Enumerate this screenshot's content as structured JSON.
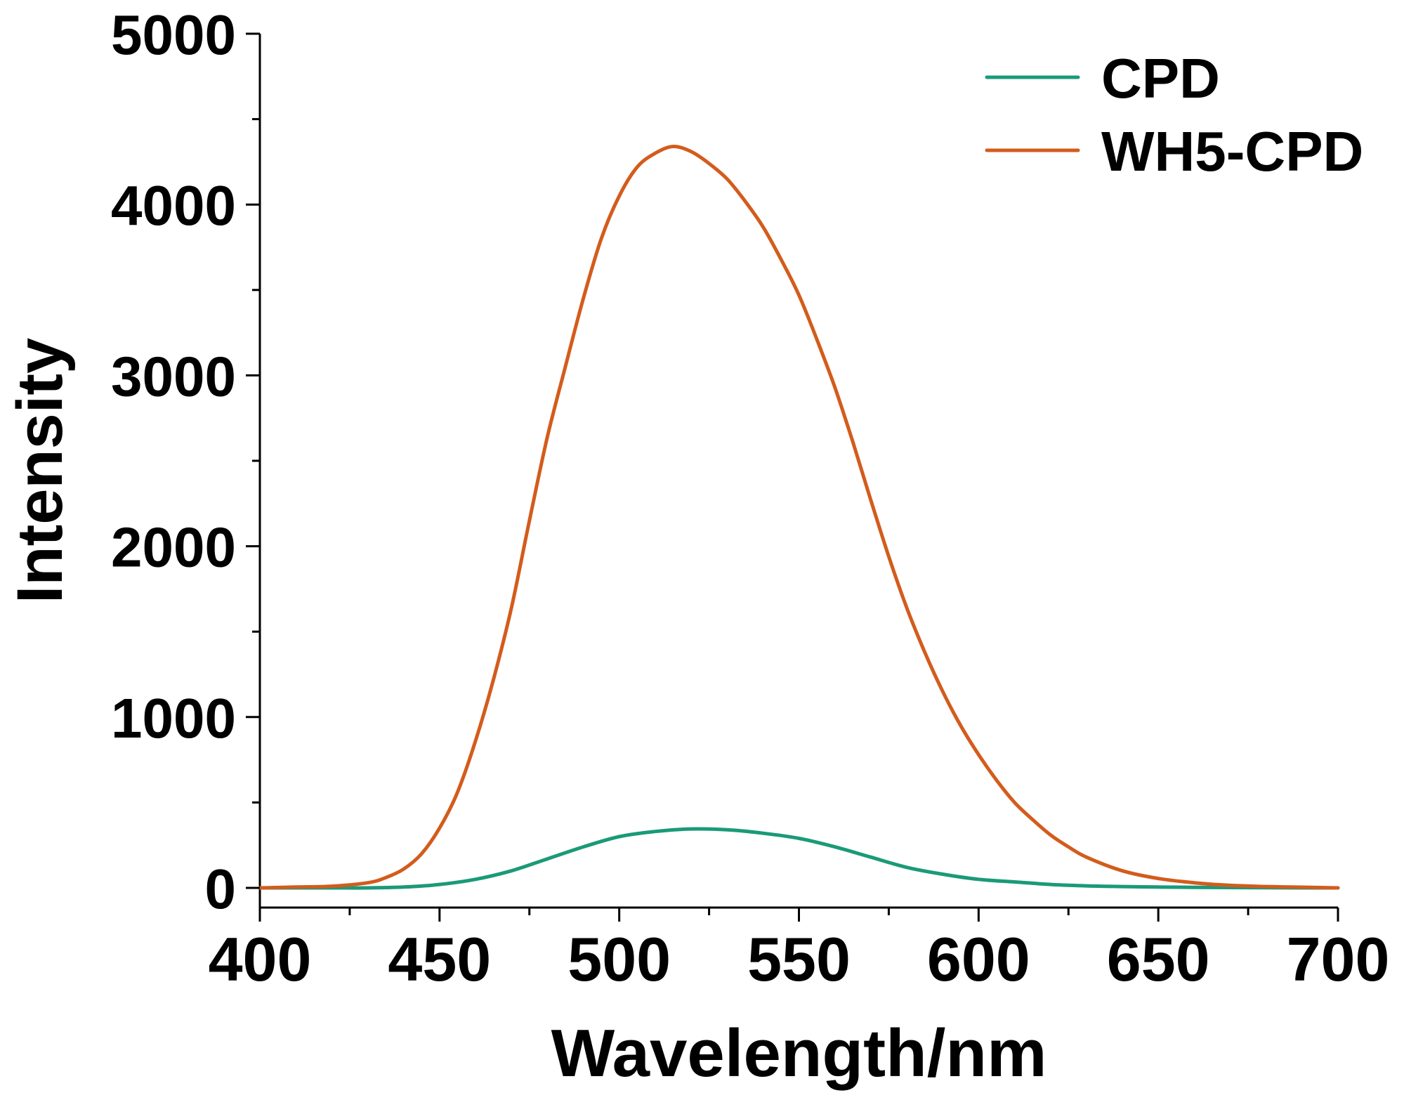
{
  "chart_data": {
    "type": "line",
    "title": "",
    "xlabel": "Wavelength/nm",
    "ylabel": "Intensity",
    "xlim": [
      400,
      700
    ],
    "ylim": [
      0,
      5000
    ],
    "xticks": [
      400,
      450,
      500,
      550,
      600,
      650,
      700
    ],
    "yticks": [
      0,
      1000,
      2000,
      3000,
      4000,
      5000
    ],
    "xtick_labels": [
      "400",
      "450",
      "500",
      "550",
      "600",
      "650",
      "700"
    ],
    "ytick_labels": [
      "0",
      "1000",
      "2000",
      "3000",
      "4000",
      "5000"
    ],
    "grid": false,
    "legend_position": "top-right",
    "series": [
      {
        "name": "CPD",
        "color": "#1a9a78",
        "x": [
          400,
          410,
          420,
          430,
          440,
          450,
          460,
          470,
          480,
          490,
          500,
          510,
          520,
          530,
          540,
          550,
          560,
          570,
          580,
          590,
          600,
          610,
          620,
          630,
          640,
          650,
          660,
          670,
          680,
          690,
          700
        ],
        "y": [
          0,
          0,
          0,
          0,
          5,
          20,
          50,
          100,
          170,
          240,
          300,
          330,
          345,
          340,
          320,
          290,
          240,
          180,
          120,
          80,
          50,
          35,
          20,
          12,
          8,
          5,
          3,
          2,
          1,
          0,
          0
        ]
      },
      {
        "name": "WH5-CPD",
        "color": "#d35c1c",
        "x": [
          400,
          410,
          420,
          430,
          435,
          440,
          445,
          450,
          455,
          460,
          465,
          470,
          475,
          480,
          485,
          490,
          495,
          500,
          505,
          510,
          515,
          520,
          525,
          530,
          535,
          540,
          545,
          550,
          555,
          560,
          565,
          570,
          575,
          580,
          585,
          590,
          595,
          600,
          605,
          610,
          615,
          620,
          625,
          630,
          640,
          650,
          660,
          670,
          680,
          690,
          700
        ],
        "y": [
          0,
          5,
          10,
          30,
          60,
          110,
          200,
          350,
          560,
          860,
          1220,
          1640,
          2150,
          2640,
          3050,
          3450,
          3800,
          4050,
          4220,
          4300,
          4340,
          4310,
          4240,
          4150,
          4020,
          3870,
          3680,
          3470,
          3210,
          2930,
          2610,
          2270,
          1940,
          1640,
          1380,
          1150,
          950,
          780,
          630,
          500,
          400,
          310,
          240,
          180,
          100,
          55,
          30,
          15,
          8,
          4,
          0
        ]
      }
    ]
  }
}
